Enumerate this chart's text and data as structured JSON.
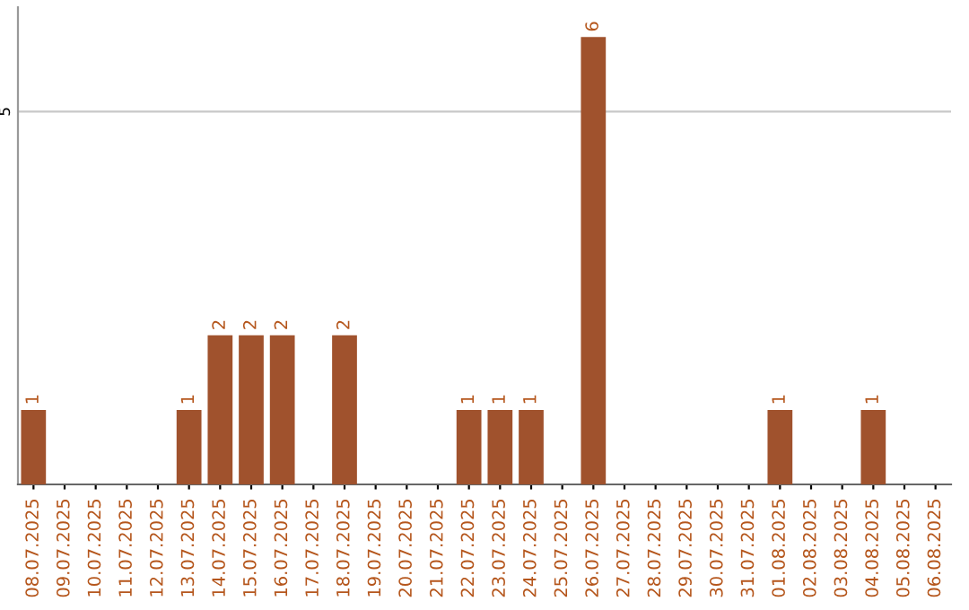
{
  "chart_data": {
    "type": "bar",
    "categories": [
      "08.07.2025",
      "09.07.2025",
      "10.07.2025",
      "11.07.2025",
      "12.07.2025",
      "13.07.2025",
      "14.07.2025",
      "15.07.2025",
      "16.07.2025",
      "17.07.2025",
      "18.07.2025",
      "19.07.2025",
      "20.07.2025",
      "21.07.2025",
      "22.07.2025",
      "23.07.2025",
      "24.07.2025",
      "25.07.2025",
      "26.07.2025",
      "27.07.2025",
      "28.07.2025",
      "29.07.2025",
      "30.07.2025",
      "31.07.2025",
      "01.08.2025",
      "02.08.2025",
      "03.08.2025",
      "04.08.2025",
      "05.08.2025",
      "06.08.2025"
    ],
    "values": [
      1,
      0,
      0,
      0,
      0,
      1,
      2,
      2,
      2,
      0,
      2,
      0,
      0,
      0,
      1,
      1,
      1,
      0,
      6,
      0,
      0,
      0,
      0,
      0,
      1,
      0,
      0,
      1,
      0,
      0
    ],
    "value_labels": [
      "1",
      null,
      null,
      null,
      null,
      "1",
      "2",
      "2",
      "2",
      null,
      "2",
      null,
      null,
      null,
      "1",
      "1",
      "1",
      null,
      "6",
      null,
      null,
      null,
      null,
      null,
      "1",
      null,
      null,
      "1",
      null,
      null
    ],
    "color": "#a0522d",
    "ylim": [
      0,
      6.4
    ],
    "yticks": [
      5
    ],
    "grid": "y"
  }
}
